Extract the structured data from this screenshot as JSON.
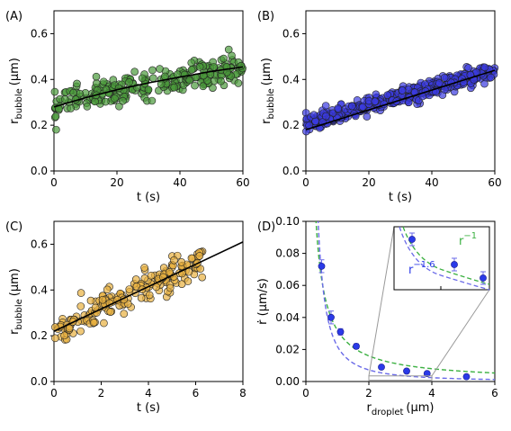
{
  "chart_data": [
    {
      "panel": "(A)",
      "type": "scatter",
      "xlabel": "t (s)",
      "ylabel_main": "r",
      "ylabel_sub": "bubble",
      "ylabel_unit": "(µm)",
      "xlim": [
        0,
        60
      ],
      "ylim": [
        0,
        0.7
      ],
      "xticks": [
        0,
        20,
        40,
        60
      ],
      "yticks": [
        0.0,
        0.2,
        0.4,
        0.6
      ],
      "ytick_labels": [
        "0.0",
        "0.2",
        "0.4",
        "0.6"
      ],
      "marker_color": "#4a9a3a",
      "fit": {
        "kind": "power-like",
        "points": [
          [
            0,
            0.28
          ],
          [
            10,
            0.32
          ],
          [
            20,
            0.355
          ],
          [
            30,
            0.385
          ],
          [
            40,
            0.41
          ],
          [
            50,
            0.435
          ],
          [
            60,
            0.455
          ]
        ]
      },
      "trend": {
        "x0": 0,
        "x1": 60,
        "y0": 0.28,
        "y1": 0.455,
        "noise": 0.03,
        "n": 260
      }
    },
    {
      "panel": "(B)",
      "type": "scatter",
      "xlabel": "t (s)",
      "ylabel_main": "r",
      "ylabel_sub": "bubble",
      "ylabel_unit": "(µm)",
      "xlim": [
        0,
        60
      ],
      "ylim": [
        0,
        0.7
      ],
      "xticks": [
        0,
        20,
        40,
        60
      ],
      "yticks": [
        0.0,
        0.2,
        0.4,
        0.6
      ],
      "ytick_labels": [
        "0.0",
        "0.2",
        "0.4",
        "0.6"
      ],
      "marker_color": "#3a3ae0",
      "fit": {
        "kind": "line",
        "points": [
          [
            0,
            0.18
          ],
          [
            60,
            0.44
          ]
        ]
      },
      "trend": {
        "x0": 0,
        "x1": 60,
        "y0": 0.205,
        "y1": 0.44,
        "noise": 0.018,
        "n": 420
      }
    },
    {
      "panel": "(C)",
      "type": "scatter",
      "xlabel": "t (s)",
      "ylabel_main": "r",
      "ylabel_sub": "bubble",
      "ylabel_unit": "(µm)",
      "xlim": [
        0,
        8
      ],
      "ylim": [
        0,
        0.7
      ],
      "xticks": [
        0,
        2,
        4,
        6,
        8
      ],
      "yticks": [
        0.0,
        0.2,
        0.4,
        0.6
      ],
      "ytick_labels": [
        "0.0",
        "0.2",
        "0.4",
        "0.6"
      ],
      "marker_color": "#e8b040",
      "fit": {
        "kind": "line",
        "points": [
          [
            0,
            0.22
          ],
          [
            8,
            0.61
          ]
        ]
      },
      "trend": {
        "x0": 0,
        "x1": 6.3,
        "y0": 0.22,
        "y1": 0.53,
        "noise": 0.035,
        "n": 190
      }
    },
    {
      "panel": "(D)",
      "type": "scatter",
      "xlabel_main": "r",
      "xlabel_sub": "droplet",
      "xlabel_unit": "(µm)",
      "ylabel": "ṙ (µm/s)",
      "xlim": [
        0,
        6
      ],
      "ylim": [
        0,
        0.1
      ],
      "xticks": [
        0,
        2,
        4,
        6
      ],
      "yticks": [
        0.0,
        0.02,
        0.04,
        0.06,
        0.08,
        0.1
      ],
      "ytick_labels": [
        "0.00",
        "0.02",
        "0.04",
        "0.06",
        "0.08",
        "0.10"
      ],
      "marker_color": "#2a3ae8",
      "points": [
        {
          "x": 0.5,
          "y": 0.072,
          "err": 0.004
        },
        {
          "x": 0.8,
          "y": 0.04,
          "err": 0.004
        },
        {
          "x": 1.1,
          "y": 0.031,
          "err": 0.002
        },
        {
          "x": 1.6,
          "y": 0.022,
          "err": 0.0015
        },
        {
          "x": 2.4,
          "y": 0.009,
          "err": 0.001
        },
        {
          "x": 3.2,
          "y": 0.0065,
          "err": 0.001
        },
        {
          "x": 3.85,
          "y": 0.005,
          "err": 0.001
        },
        {
          "x": 5.1,
          "y": 0.003,
          "err": 0.0008
        }
      ],
      "fits": [
        {
          "name": "r^-1",
          "exponent": -1,
          "coef": 0.032,
          "color": "#3ab040"
        },
        {
          "name": "r^-1.6",
          "exponent": -1.6,
          "coef": 0.022,
          "color": "#6a6ae8"
        }
      ],
      "inset": {
        "label_green_base": "r",
        "label_green_exp": "−1",
        "label_blue_base": "r",
        "label_blue_exp": "−1.6",
        "xrange": [
          2,
          4
        ],
        "yrange": [
          0,
          0.012
        ]
      }
    }
  ]
}
